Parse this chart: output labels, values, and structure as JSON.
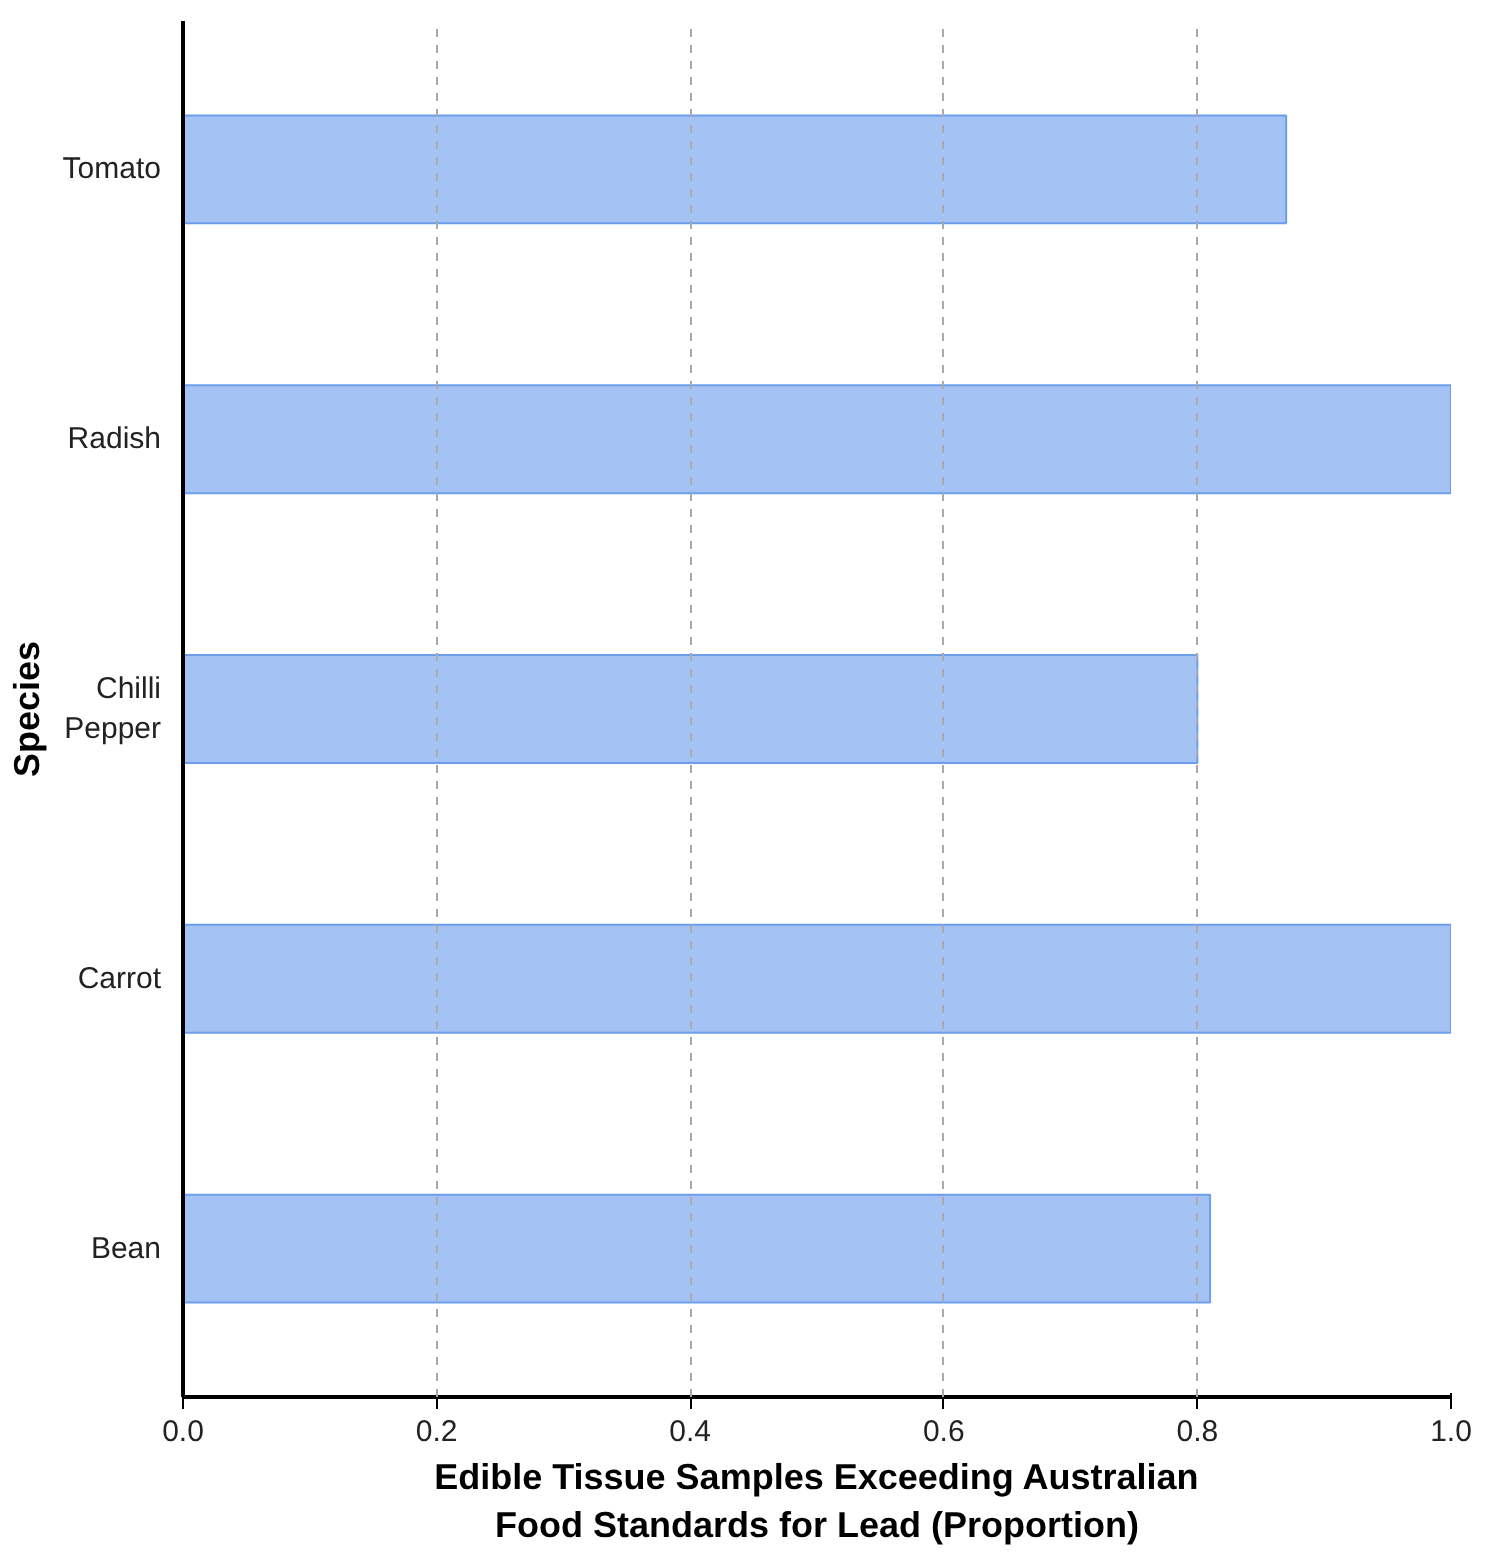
{
  "chart_data": {
    "type": "bar",
    "orientation": "horizontal",
    "categories": [
      "Tomato",
      "Radish",
      "Chilli Pepper",
      "Carrot",
      "Bean"
    ],
    "values": [
      0.87,
      1.0,
      0.8,
      1.0,
      0.81
    ],
    "color": "#a4c2f4",
    "xlabel": "Edible Tissue Samples Exceeding Australian Food Standards for Lead (Proportion)",
    "ylabel": "Species",
    "xlim": [
      0,
      1.0
    ],
    "xticks": [
      {
        "value": 0,
        "label": "0.0"
      },
      {
        "value": 0.2,
        "label": "0.2"
      },
      {
        "value": 0.4,
        "label": "0.4"
      },
      {
        "value": 0.6,
        "label": "0.6"
      },
      {
        "value": 0.8,
        "label": "0.8"
      },
      {
        "value": 1.0,
        "label": "1.0"
      }
    ],
    "grid": "x"
  }
}
